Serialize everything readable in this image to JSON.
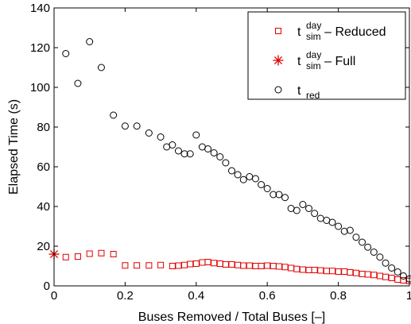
{
  "chart_data": {
    "type": "scatter",
    "xlabel": "Buses Removed / Total Buses [–]",
    "ylabel": "Elapsed Time (s)",
    "xlim": [
      0,
      1
    ],
    "ylim": [
      0,
      140
    ],
    "xticks": [
      0,
      0.2,
      0.4,
      0.6,
      0.8,
      1
    ],
    "yticks": [
      0,
      20,
      40,
      60,
      80,
      100,
      120,
      140
    ],
    "xtick_labels": [
      "0",
      "0.2",
      "0.4",
      "0.6",
      "0.8",
      "1"
    ],
    "ytick_labels": [
      "0",
      "20",
      "40",
      "60",
      "80",
      "100",
      "120",
      "140"
    ],
    "grid": false,
    "legend_position": "top-right",
    "colors": {
      "reduced": "#e00000",
      "full": "#e00000",
      "red": "#000000"
    },
    "series": [
      {
        "key": "reduced",
        "marker": "square",
        "legend": {
          "main": "t",
          "sup": "day",
          "sub": "sim",
          "suffix": " – Reduced"
        },
        "x": [
          0.033,
          0.067,
          0.1,
          0.133,
          0.167,
          0.2,
          0.233,
          0.267,
          0.3,
          0.333,
          0.35,
          0.367,
          0.383,
          0.4,
          0.417,
          0.433,
          0.45,
          0.467,
          0.483,
          0.5,
          0.517,
          0.533,
          0.55,
          0.567,
          0.583,
          0.6,
          0.617,
          0.633,
          0.65,
          0.667,
          0.683,
          0.7,
          0.717,
          0.733,
          0.75,
          0.767,
          0.783,
          0.8,
          0.817,
          0.833,
          0.85,
          0.867,
          0.883,
          0.9,
          0.917,
          0.933,
          0.95,
          0.967,
          0.983,
          1.0
        ],
        "y": [
          14.5,
          14.8,
          16.2,
          16.5,
          16.0,
          10.3,
          10.3,
          10.3,
          10.5,
          10.0,
          10.2,
          10.5,
          11.0,
          11.2,
          11.8,
          12.0,
          11.5,
          11.2,
          10.8,
          10.8,
          10.5,
          10.2,
          10.2,
          10.0,
          10.0,
          10.2,
          10.0,
          9.8,
          9.5,
          9.0,
          8.5,
          8.2,
          8.0,
          8.0,
          7.8,
          7.5,
          7.5,
          7.2,
          7.2,
          6.8,
          6.5,
          6.0,
          5.8,
          5.5,
          5.0,
          4.5,
          4.0,
          3.2,
          2.8,
          2.5
        ]
      },
      {
        "key": "full",
        "marker": "asterisk",
        "legend": {
          "main": "t",
          "sup": "day",
          "sub": "sim",
          "suffix": " – Full"
        },
        "x": [
          0
        ],
        "y": [
          16
        ]
      },
      {
        "key": "red",
        "marker": "circle",
        "legend": {
          "main": "t",
          "sup": "",
          "sub": "red",
          "suffix": ""
        },
        "x": [
          0.033,
          0.067,
          0.1,
          0.133,
          0.167,
          0.2,
          0.233,
          0.267,
          0.3,
          0.317,
          0.333,
          0.35,
          0.367,
          0.383,
          0.4,
          0.417,
          0.433,
          0.45,
          0.467,
          0.483,
          0.5,
          0.517,
          0.533,
          0.55,
          0.567,
          0.583,
          0.6,
          0.617,
          0.633,
          0.65,
          0.667,
          0.683,
          0.7,
          0.717,
          0.733,
          0.75,
          0.767,
          0.783,
          0.8,
          0.817,
          0.833,
          0.85,
          0.867,
          0.883,
          0.9,
          0.917,
          0.933,
          0.95,
          0.967,
          0.983,
          1.0
        ],
        "y": [
          117,
          102,
          123,
          110,
          86,
          80.5,
          80.5,
          77,
          75,
          70,
          71,
          68,
          66.5,
          66.5,
          76,
          70,
          69,
          67,
          65,
          62,
          58,
          56,
          53.5,
          55,
          54,
          51,
          49,
          46,
          46,
          44.5,
          39,
          38,
          41,
          39,
          36.5,
          34,
          33,
          32,
          30,
          27.5,
          28,
          24.5,
          22,
          19.5,
          17,
          14.5,
          11.5,
          9,
          7,
          5,
          3.5
        ]
      }
    ]
  }
}
